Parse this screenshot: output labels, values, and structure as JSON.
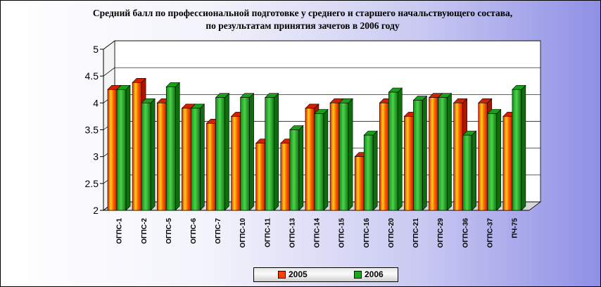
{
  "chart_data": {
    "type": "bar",
    "title": "Средний балл по профессиональной подготовке у среднего и старшего начальствующего состава,",
    "subtitle": "по результатам принятия зачетов в 2006 году",
    "categories": [
      "ОГПС-1",
      "ОГПС-2",
      "ОГПС-5",
      "ОГПС-6",
      "ОГПС-7",
      "ОГПС-10",
      "ОГПС-11",
      "ОГПС-13",
      "ОГПС-14",
      "ОГПС-15",
      "ОГПС-16",
      "ОГПС-20",
      "ОГПС-21",
      "ОГПС-29",
      "ОГПС-36",
      "ОГПС-37",
      "ПЧ-75"
    ],
    "series": [
      {
        "name": "2005",
        "color": "#ff4000",
        "values": [
          4.25,
          4.38,
          4.0,
          3.9,
          3.62,
          3.75,
          3.25,
          3.25,
          3.9,
          4.0,
          3.0,
          4.0,
          3.75,
          4.1,
          4.0,
          4.0,
          3.75
        ]
      },
      {
        "name": "2006",
        "color": "#1fa81f",
        "values": [
          4.25,
          4.0,
          4.3,
          3.9,
          4.1,
          4.1,
          4.1,
          3.5,
          3.8,
          4.0,
          3.4,
          4.2,
          4.05,
          4.1,
          3.4,
          3.8,
          4.25
        ]
      }
    ],
    "ylim": [
      2,
      5
    ],
    "yticks": [
      2,
      2.5,
      3,
      3.5,
      4,
      4.5,
      5
    ],
    "ytick_labels": [
      "2",
      "2.5",
      "3",
      "3.5",
      "4",
      "4.5",
      "5"
    ],
    "grid": true,
    "legend_position": "bottom"
  }
}
